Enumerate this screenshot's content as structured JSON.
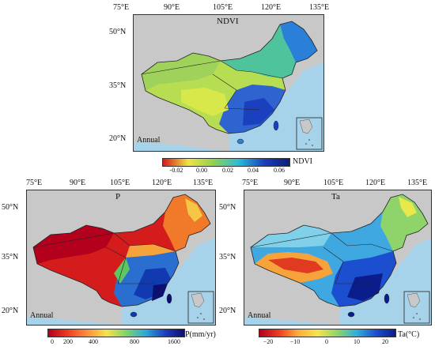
{
  "panels": {
    "ndvi": {
      "title": "NDVI",
      "annual": "Annual",
      "lon_labels": [
        "75°E",
        "90°E",
        "105°E",
        "120°E",
        "135°E"
      ],
      "lat_labels": [
        "50°N",
        "35°N",
        "20°N"
      ],
      "colorbar": {
        "ticks": [
          "-0.02",
          "0.00",
          "0.02",
          "0.04",
          "0.06"
        ],
        "label": "NDVI",
        "colors": [
          "#d7191c",
          "#f0e442",
          "#8fd14f",
          "#2bbbd8",
          "#1a3fbf",
          "#0b1d7a"
        ]
      }
    },
    "p": {
      "title": "P",
      "annual": "Annual",
      "lon_labels": [
        "75°E",
        "90°E",
        "105°E",
        "120°E",
        "135°E"
      ],
      "lat_labels": [
        "50°N",
        "35°N",
        "20°N"
      ],
      "colorbar": {
        "ticks": [
          "0",
          "200",
          "400",
          "800",
          "1600"
        ],
        "label": "P(mm/yr)",
        "colors": [
          "#b2001d",
          "#f03b20",
          "#fd8d3c",
          "#f7e34a",
          "#7fd46a",
          "#2fa8d8",
          "#1c3fbf",
          "#0b1070"
        ]
      }
    },
    "ta": {
      "title": "Ta",
      "annual": "Annual",
      "lon_labels": [
        "75°E",
        "90°E",
        "105°E",
        "120°E",
        "135°E"
      ],
      "lat_labels": [
        "50°N",
        "35°N",
        "20°N"
      ],
      "colorbar": {
        "ticks": [
          "−20",
          "−10",
          "0",
          "10",
          "20"
        ],
        "label": "Ta(°C)",
        "colors": [
          "#b2001d",
          "#f03b20",
          "#fdae3c",
          "#f7e34a",
          "#8fd46a",
          "#2fb0d8",
          "#1c4fd0",
          "#0b1d8a"
        ]
      }
    }
  }
}
